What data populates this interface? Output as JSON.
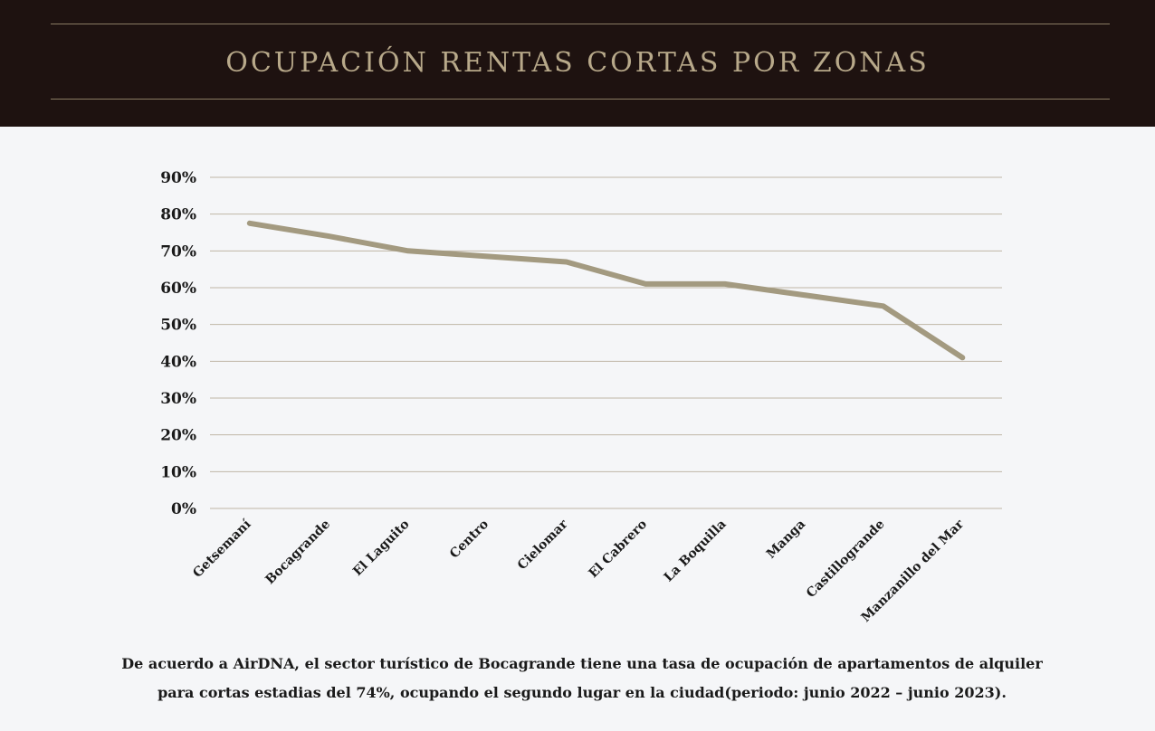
{
  "header": {
    "title": "Ocupación Rentas Cortas por Zonas"
  },
  "chart_data": {
    "type": "line",
    "title": "Ocupación Rentas Cortas por Zonas",
    "xlabel": "",
    "ylabel": "",
    "ylim": [
      0,
      90
    ],
    "grid": true,
    "yticks": [
      "0%",
      "10%",
      "20%",
      "30%",
      "40%",
      "50%",
      "60%",
      "70%",
      "80%",
      "90%"
    ],
    "categories": [
      "Getsemaní",
      "Bocagrande",
      "El Laguito",
      "Centro",
      "Cielomar",
      "El Cabrero",
      "La Boquilla",
      "Manga",
      "Castillogrande",
      "Manzanillo del Mar"
    ],
    "series": [
      {
        "name": "Ocupación",
        "color": "#a39a80",
        "values": [
          77.5,
          74,
          70,
          68.5,
          67,
          61,
          61,
          58,
          55,
          41
        ]
      }
    ]
  },
  "caption": {
    "line1": "De acuerdo a AirDNA, el sector turístico de Bocagrande tiene una tasa de ocupación de apartamentos de alquiler",
    "line2": "para cortas estadias del 74%, ocupando el segundo lugar en la ciudad(periodo: junio 2022 – junio 2023)."
  }
}
